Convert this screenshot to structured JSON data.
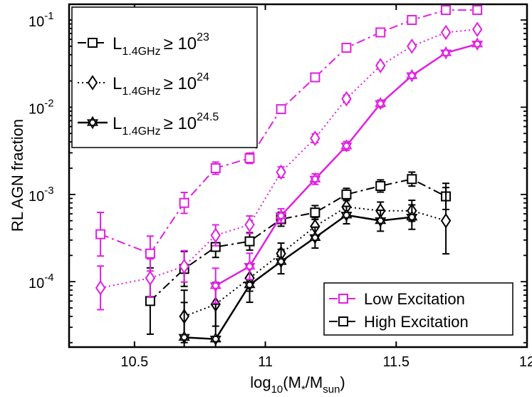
{
  "chart_data": {
    "type": "line",
    "xlabel": {
      "base": "log",
      "sub1": "10",
      "open": "(M",
      "sub2": "*",
      "mid": "/M",
      "sub3": "sun",
      "close": ")"
    },
    "ylabel": "RL AGN fraction",
    "xlim": [
      10.25,
      12.0
    ],
    "ylim_log10": [
      -4.75,
      -0.82
    ],
    "xticks": [
      {
        "value": 10.5,
        "label": "10.5"
      },
      {
        "value": 11.0,
        "label": "11"
      },
      {
        "value": 11.5,
        "label": "11.5"
      },
      {
        "value": 12.0,
        "label": "12"
      }
    ],
    "yticks": [
      {
        "exp": -1,
        "base": "10",
        "sup": "-1"
      },
      {
        "exp": -2,
        "base": "10",
        "sup": "-2"
      },
      {
        "exp": -3,
        "base": "10",
        "sup": "-3"
      },
      {
        "exp": -4,
        "base": "10",
        "sup": "-4"
      }
    ],
    "colors": {
      "low": "#e020e0",
      "high": "#000000"
    },
    "series": [
      {
        "name": "Low excitation, L >= 10^23",
        "group": "low",
        "marker": "square",
        "linestyle": "dashdot",
        "x": [
          10.37,
          10.56,
          10.69,
          10.81,
          10.94,
          11.06,
          11.19,
          11.31,
          11.44,
          11.56,
          11.69,
          11.81
        ],
        "y": [
          0.00035,
          0.00021,
          0.0008,
          0.002,
          0.0026,
          0.0095,
          0.022,
          0.048,
          0.072,
          0.1,
          0.13,
          0.13
        ],
        "err": [
          0.25,
          0.2,
          0.12,
          0.07,
          0.06,
          0.04,
          0.03,
          0.02,
          0.02,
          0.02,
          0.02,
          0.02
        ]
      },
      {
        "name": "Low excitation, L >= 10^24",
        "group": "low",
        "marker": "diamond",
        "linestyle": "dotted",
        "x": [
          10.37,
          10.56,
          10.69,
          10.81,
          10.94,
          11.06,
          11.19,
          11.31,
          11.44,
          11.56,
          11.69,
          11.81
        ],
        "y": [
          8.5e-05,
          0.00011,
          0.00015,
          0.00034,
          0.00045,
          0.0018,
          0.0044,
          0.0125,
          0.03,
          0.05,
          0.072,
          0.078
        ],
        "err": [
          0.25,
          0.22,
          0.18,
          0.12,
          0.1,
          0.06,
          0.05,
          0.04,
          0.03,
          0.025,
          0.02,
          0.02
        ]
      },
      {
        "name": "Low excitation, L >= 10^24.5",
        "group": "low",
        "marker": "star",
        "linestyle": "solid",
        "x": [
          10.81,
          10.94,
          11.06,
          11.19,
          11.31,
          11.44,
          11.56,
          11.69,
          11.81
        ],
        "y": [
          9e-05,
          0.00015,
          0.00057,
          0.0015,
          0.0036,
          0.011,
          0.023,
          0.042,
          0.053
        ],
        "err": [
          0.2,
          0.15,
          0.08,
          0.06,
          0.05,
          0.04,
          0.03,
          0.025,
          0.02
        ]
      },
      {
        "name": "High excitation, L >= 10^23",
        "group": "high",
        "marker": "square",
        "linestyle": "dashdot",
        "x": [
          10.56,
          10.69,
          10.81,
          10.94,
          11.06,
          11.19,
          11.31,
          11.44,
          11.56,
          11.69
        ],
        "y": [
          6e-05,
          0.00014,
          0.00025,
          0.00029,
          0.00052,
          0.00062,
          0.001,
          0.00125,
          0.0015,
          0.00095
        ],
        "err": [
          0.38,
          0.2,
          0.12,
          0.1,
          0.08,
          0.08,
          0.07,
          0.07,
          0.08,
          0.15
        ]
      },
      {
        "name": "High excitation, L >= 10^24",
        "group": "high",
        "marker": "diamond",
        "linestyle": "dotted",
        "x": [
          10.69,
          10.81,
          10.94,
          11.06,
          11.19,
          11.31,
          11.44,
          11.56,
          11.69
        ],
        "y": [
          4e-05,
          5.5e-05,
          0.00011,
          0.00021,
          0.00043,
          0.00072,
          0.00065,
          0.00065,
          0.0005
        ],
        "err": [
          0.3,
          0.25,
          0.15,
          0.12,
          0.1,
          0.09,
          0.1,
          0.12,
          0.38
        ]
      },
      {
        "name": "High excitation, L >= 10^24.5",
        "group": "high",
        "marker": "star",
        "linestyle": "solid",
        "x": [
          10.69,
          10.81,
          10.94,
          11.06,
          11.19,
          11.31,
          11.44,
          11.56
        ],
        "y": [
          2.3e-05,
          2.2e-05,
          9.2e-05,
          0.00017,
          0.00032,
          0.00058,
          0.0005,
          0.00055
        ],
        "err": [
          0.4,
          0.4,
          0.2,
          0.14,
          0.12,
          0.1,
          0.12,
          0.14
        ]
      }
    ],
    "legend_lum": [
      {
        "marker": "square",
        "linestyle": "dashdot",
        "base": "L",
        "sub": "1.4GHz",
        "rel": "≥ 10",
        "sup": "23"
      },
      {
        "marker": "diamond",
        "linestyle": "dotted",
        "base": "L",
        "sub": "1.4GHz",
        "rel": "≥ 10",
        "sup": "24"
      },
      {
        "marker": "star",
        "linestyle": "solid",
        "base": "L",
        "sub": "1.4GHz",
        "rel": "≥ 10",
        "sup": "24.5"
      }
    ],
    "legend_lum_position": "top-left",
    "legend_exc": [
      {
        "group": "low",
        "label": "Low Excitation"
      },
      {
        "group": "high",
        "label": "High Excitation"
      }
    ],
    "legend_exc_position": "bottom-right"
  }
}
